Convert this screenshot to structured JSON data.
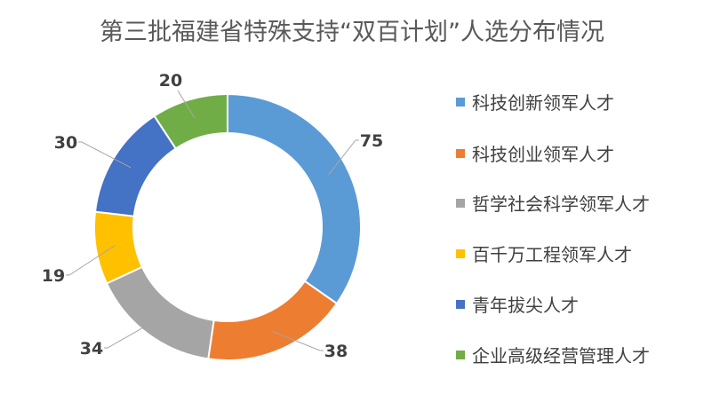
{
  "chart_data": {
    "type": "pie",
    "variant": "donut",
    "title": "第三批福建省特殊支持“双百计划”人选分布情况",
    "categories": [
      "科技创新领军人才",
      "科技创业领军人才",
      "哲学社会科学领军人才",
      "百千万工程领军人才",
      "青年拔尖人才",
      "企业高级经营管理人才"
    ],
    "values": [
      75,
      38,
      34,
      19,
      30,
      20
    ],
    "colors": [
      "#5B9BD5",
      "#ED7D31",
      "#A5A5A5",
      "#FFC000",
      "#4472C4",
      "#70AD47"
    ],
    "legend": "right",
    "data_labels": [
      "75",
      "38",
      "34",
      "19",
      "30",
      "20"
    ]
  }
}
